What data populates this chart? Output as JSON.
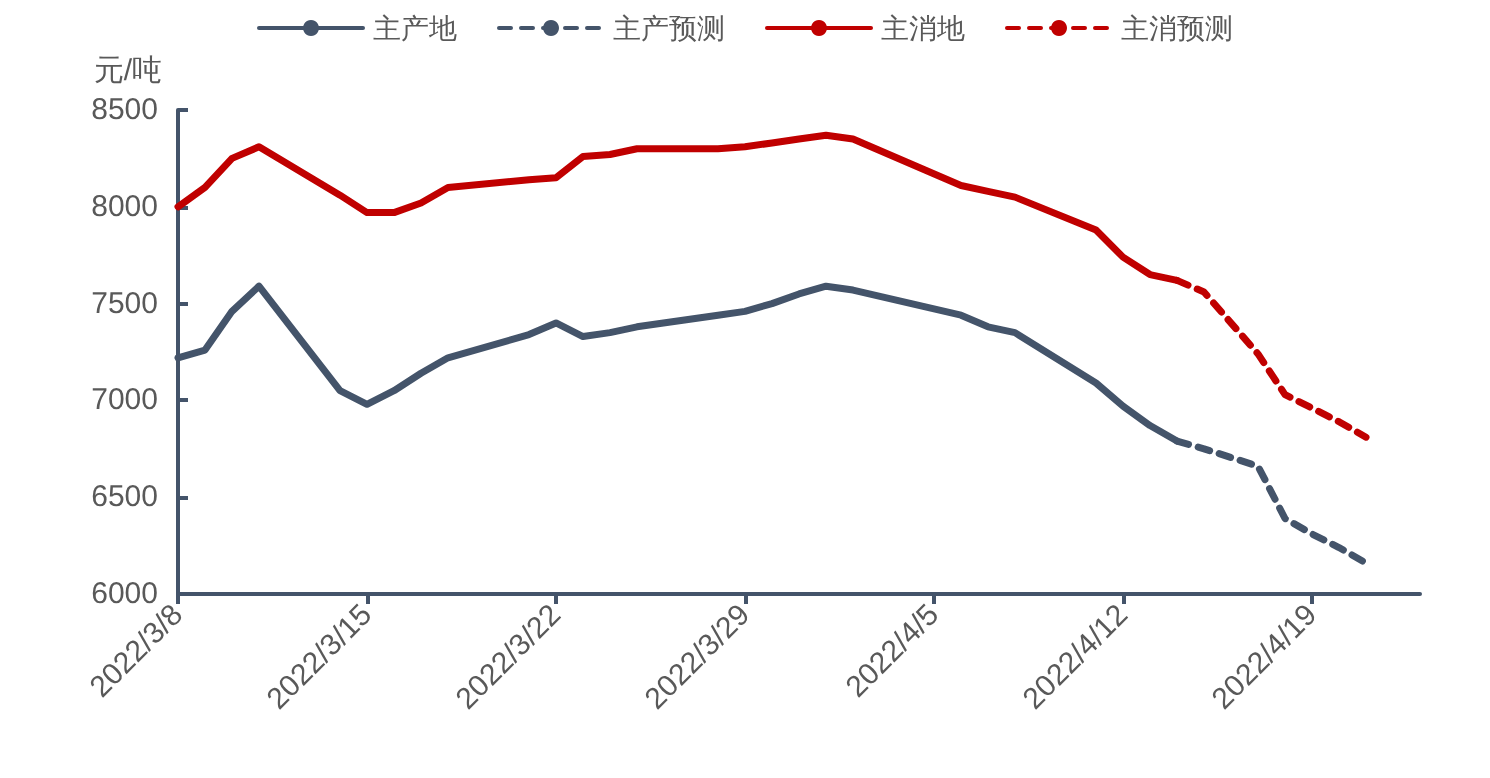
{
  "chart_data": {
    "type": "line",
    "ylabel": "元/吨",
    "xlim": [
      "2022-03-08",
      "2022-04-23"
    ],
    "xticks": [
      {
        "value": "2022-03-08",
        "label": "2022/3/8"
      },
      {
        "value": "2022-03-15",
        "label": "2022/3/15"
      },
      {
        "value": "2022-03-22",
        "label": "2022/3/22"
      },
      {
        "value": "2022-03-29",
        "label": "2022/3/29"
      },
      {
        "value": "2022-04-05",
        "label": "2022/4/5"
      },
      {
        "value": "2022-04-12",
        "label": "2022/4/12"
      },
      {
        "value": "2022-04-19",
        "label": "2022/4/19"
      }
    ],
    "ylim": [
      6000,
      8500
    ],
    "yticks": [
      6000,
      6500,
      7000,
      7500,
      8000,
      8500
    ],
    "grid": false,
    "legend": "top",
    "series": [
      {
        "name": "主产地",
        "color": "#44546a",
        "line_style": "solid",
        "x": [
          "2022-03-08",
          "2022-03-09",
          "2022-03-10",
          "2022-03-11",
          "2022-03-14",
          "2022-03-15",
          "2022-03-16",
          "2022-03-17",
          "2022-03-18",
          "2022-03-21",
          "2022-03-22",
          "2022-03-23",
          "2022-03-24",
          "2022-03-25",
          "2022-03-28",
          "2022-03-29",
          "2022-03-30",
          "2022-03-31",
          "2022-04-01",
          "2022-04-02",
          "2022-04-06",
          "2022-04-07",
          "2022-04-08",
          "2022-04-11",
          "2022-04-12",
          "2022-04-13",
          "2022-04-14"
        ],
        "values": [
          7220,
          7260,
          7460,
          7590,
          7050,
          6980,
          7050,
          7140,
          7220,
          7340,
          7400,
          7330,
          7350,
          7380,
          7440,
          7460,
          7500,
          7550,
          7590,
          7570,
          7440,
          7380,
          7350,
          7090,
          6970,
          6870,
          6790
        ]
      },
      {
        "name": "主产预测",
        "color": "#44546a",
        "line_style": "dashed",
        "x": [
          "2022-04-14",
          "2022-04-15",
          "2022-04-17",
          "2022-04-18",
          "2022-04-19",
          "2022-04-20",
          "2022-04-21"
        ],
        "values": [
          6790,
          6750,
          6660,
          6390,
          6310,
          6240,
          6160
        ]
      },
      {
        "name": "主消地",
        "color": "#c00000",
        "line_style": "solid",
        "x": [
          "2022-03-08",
          "2022-03-09",
          "2022-03-10",
          "2022-03-11",
          "2022-03-14",
          "2022-03-15",
          "2022-03-16",
          "2022-03-17",
          "2022-03-18",
          "2022-03-21",
          "2022-03-22",
          "2022-03-23",
          "2022-03-24",
          "2022-03-25",
          "2022-03-28",
          "2022-03-29",
          "2022-03-30",
          "2022-03-31",
          "2022-04-01",
          "2022-04-02",
          "2022-04-06",
          "2022-04-07",
          "2022-04-08",
          "2022-04-11",
          "2022-04-12",
          "2022-04-13",
          "2022-04-14"
        ],
        "values": [
          8000,
          8100,
          8250,
          8310,
          8060,
          7970,
          7970,
          8020,
          8100,
          8140,
          8150,
          8260,
          8270,
          8300,
          8300,
          8310,
          8330,
          8350,
          8370,
          8350,
          8110,
          8080,
          8050,
          7880,
          7740,
          7650,
          7620
        ]
      },
      {
        "name": "主消预测",
        "color": "#c00000",
        "line_style": "dashed",
        "x": [
          "2022-04-14",
          "2022-04-15",
          "2022-04-17",
          "2022-04-18",
          "2022-04-19",
          "2022-04-20",
          "2022-04-21"
        ],
        "values": [
          7620,
          7560,
          7240,
          7030,
          6960,
          6890,
          6810
        ]
      }
    ]
  }
}
